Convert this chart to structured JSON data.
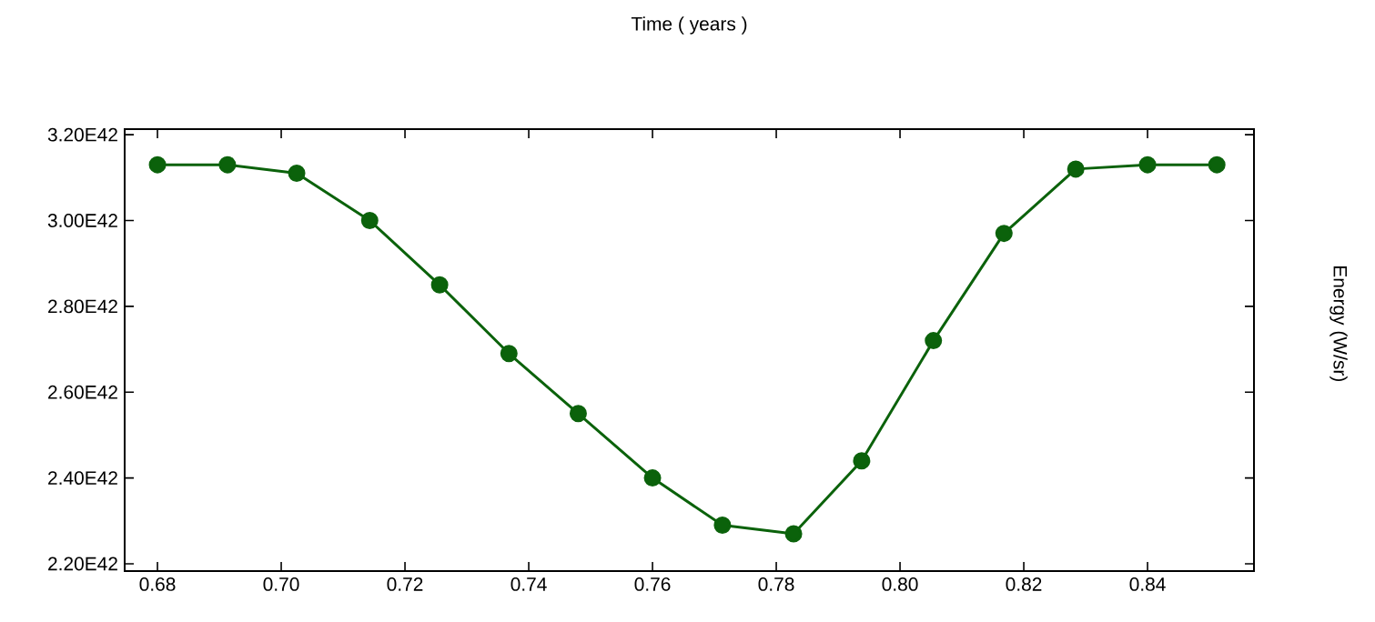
{
  "chart_data": {
    "type": "line",
    "xlabel": "Time ( years )",
    "ylabel": "Energy (W/sr)",
    "x": [
      0.68,
      0.6913,
      0.7025,
      0.7143,
      0.7256,
      0.7368,
      0.748,
      0.76,
      0.7713,
      0.7828,
      0.7938,
      0.8054,
      0.8168,
      0.8284,
      0.84,
      0.8512
    ],
    "series": [
      {
        "color": "#0b620b",
        "values": [
          3.13e+42,
          3.13e+42,
          3.11e+42,
          3e+42,
          2.85e+42,
          2.69e+42,
          2.55e+42,
          2.4e+42,
          2.29e+42,
          2.27e+42,
          2.44e+42,
          2.72e+42,
          2.97e+42,
          3.12e+42,
          3.13e+42,
          3.13e+42
        ]
      }
    ],
    "xlim": [
      0.6747,
      0.8572
    ],
    "ylim": [
      2.183e+42,
      3.213e+42
    ],
    "xticks": [
      {
        "value": 0.68,
        "label": "0.68"
      },
      {
        "value": 0.7,
        "label": "0.70"
      },
      {
        "value": 0.72,
        "label": "0.72"
      },
      {
        "value": 0.74,
        "label": "0.74"
      },
      {
        "value": 0.76,
        "label": "0.76"
      },
      {
        "value": 0.78,
        "label": "0.78"
      },
      {
        "value": 0.8,
        "label": "0.80"
      },
      {
        "value": 0.82,
        "label": "0.82"
      },
      {
        "value": 0.84,
        "label": "0.84"
      }
    ],
    "yticks": [
      {
        "value": 2.2e+42,
        "label": "2.20E42"
      },
      {
        "value": 2.4e+42,
        "label": "2.40E42"
      },
      {
        "value": 2.6e+42,
        "label": "2.60E42"
      },
      {
        "value": 2.8e+42,
        "label": "2.80E42"
      },
      {
        "value": 3e+42,
        "label": "3.00E42"
      },
      {
        "value": 3.2e+42,
        "label": "3.20E42"
      }
    ],
    "grid": false,
    "marker": "circle",
    "line_style": "solid"
  }
}
